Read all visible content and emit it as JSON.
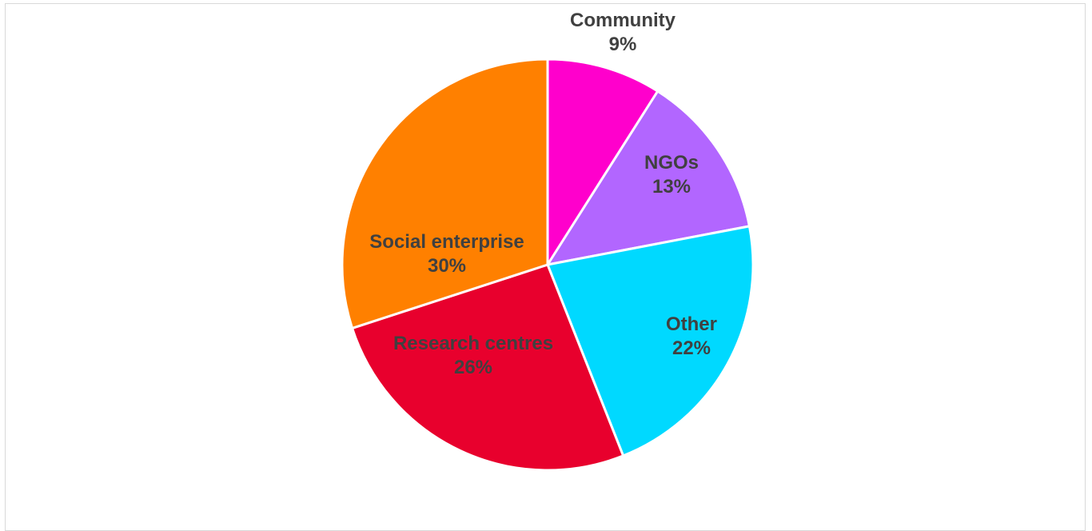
{
  "chart_data": {
    "type": "pie",
    "title": "",
    "slices": [
      {
        "label": "Community",
        "value": 9,
        "display": "9%",
        "color": "#FF00CC"
      },
      {
        "label": "NGOs",
        "value": 13,
        "display": "13%",
        "color": "#B266FF"
      },
      {
        "label": "Other",
        "value": 22,
        "display": "22%",
        "color": "#00D9FF"
      },
      {
        "label": "Research centres",
        "value": 26,
        "display": "26%",
        "color": "#E8002D"
      },
      {
        "label": "Social enterprise",
        "value": 30,
        "display": "30%",
        "color": "#FF8000"
      }
    ],
    "start_angle_deg": 0,
    "direction": "clockwise",
    "legend": "none",
    "label_color": "#404040"
  }
}
